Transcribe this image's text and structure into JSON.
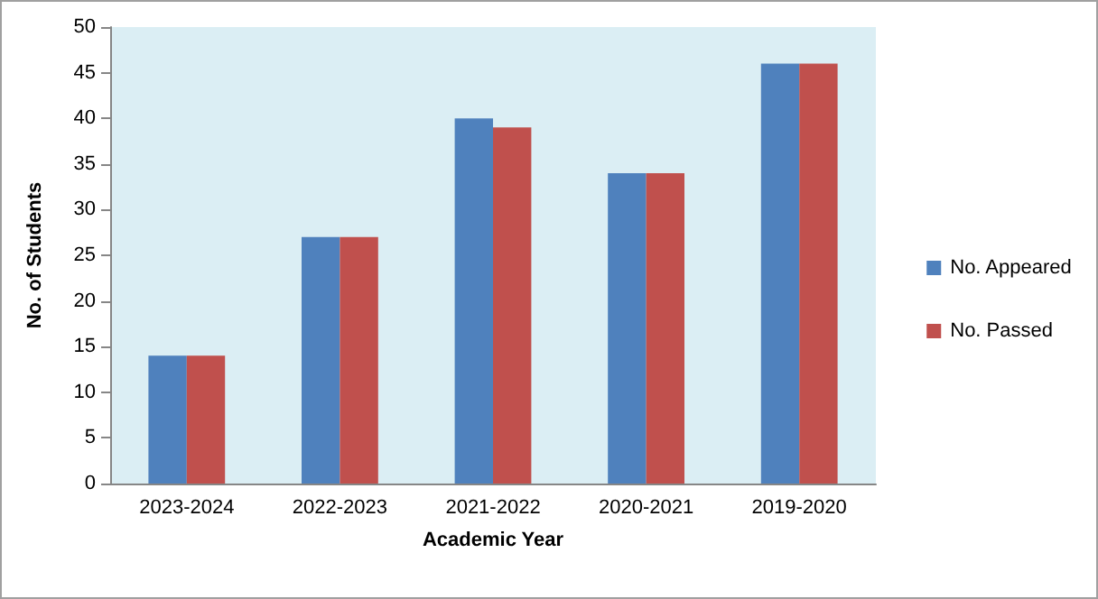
{
  "chart_data": {
    "type": "bar",
    "xlabel": "Academic Year",
    "ylabel": "No. of Students",
    "categories": [
      "2023-2024",
      "2022-2023",
      "2021-2022",
      "2020-2021",
      "2019-2020"
    ],
    "series": [
      {
        "name": "No. Appeared",
        "color": "#4f81bd",
        "values": [
          14,
          27,
          40,
          34,
          46
        ]
      },
      {
        "name": "No. Passed",
        "color": "#c0504d",
        "values": [
          14,
          27,
          39,
          34,
          46
        ]
      }
    ],
    "ylim": [
      0,
      50
    ],
    "yticks": [
      0,
      5,
      10,
      15,
      20,
      25,
      30,
      35,
      40,
      45,
      50
    ],
    "grid": false,
    "legend": "right"
  }
}
